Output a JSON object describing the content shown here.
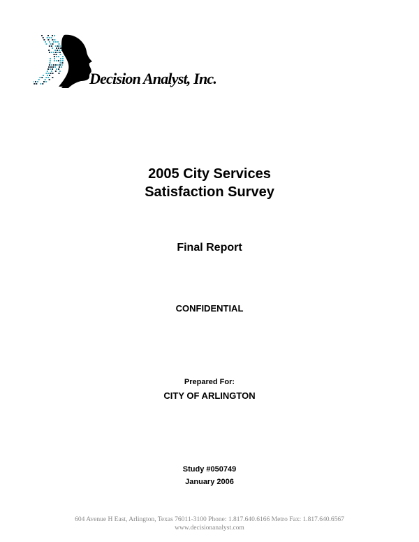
{
  "logo": {
    "company_name": "Decision Analyst, Inc.",
    "colors": {
      "dots_teal": "#3fb3c8",
      "dots_dark": "#1a2a3a",
      "silhouette": "#000000"
    }
  },
  "title": {
    "line1": "2005 City Services",
    "line2": "Satisfaction Survey"
  },
  "subtitle": "Final Report",
  "confidential": "CONFIDENTIAL",
  "prepared": {
    "label": "Prepared For:",
    "client": "CITY OF ARLINGTON"
  },
  "study": {
    "number": "Study #050749",
    "date": "January 2006"
  },
  "footer": {
    "address": "604 Avenue H East, Arlington, Texas  76011-3100   Phone: 1.817.640.6166 Metro    Fax: 1.817.640.6567",
    "website": "www.decisionanalyst.com"
  }
}
